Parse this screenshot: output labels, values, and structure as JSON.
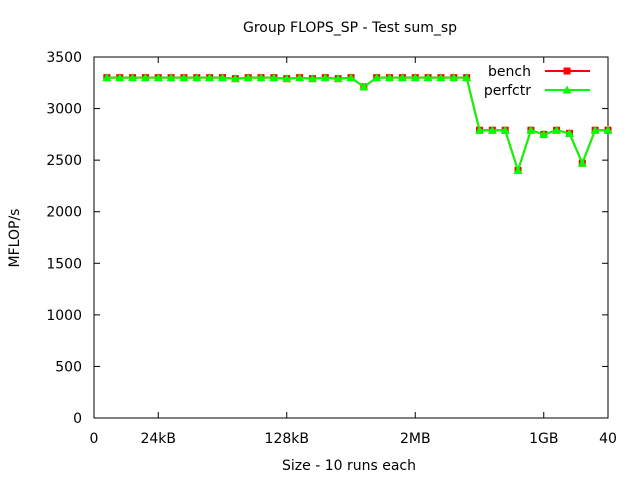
{
  "chart_data": {
    "type": "line",
    "title": "Group FLOPS_SP - Test sum_sp",
    "xlabel": "Size - 10 runs each",
    "ylabel": "MFLOP/s",
    "xlim": [
      0,
      40
    ],
    "ylim": [
      0,
      3500
    ],
    "grid": false,
    "legend_position": "top-right",
    "x_ticks": [
      {
        "value": 0,
        "label": "0"
      },
      {
        "value": 5,
        "label": "24kB"
      },
      {
        "value": 15,
        "label": "128kB"
      },
      {
        "value": 25,
        "label": "2MB"
      },
      {
        "value": 35,
        "label": "1GB"
      },
      {
        "value": 40,
        "label": "40"
      }
    ],
    "y_ticks": [
      0,
      500,
      1000,
      1500,
      2000,
      2500,
      3000,
      3500
    ],
    "x": [
      1,
      2,
      3,
      4,
      5,
      6,
      7,
      8,
      9,
      10,
      11,
      12,
      13,
      14,
      15,
      16,
      17,
      18,
      19,
      20,
      21,
      22,
      23,
      24,
      25,
      26,
      27,
      28,
      29,
      30,
      31,
      32,
      33,
      34,
      35,
      36,
      37,
      38,
      39,
      40
    ],
    "series": [
      {
        "name": "bench",
        "color": "#ff0000",
        "marker": "square",
        "values": [
          3300,
          3300,
          3300,
          3300,
          3300,
          3300,
          3300,
          3300,
          3300,
          3300,
          3290,
          3300,
          3300,
          3300,
          3290,
          3300,
          3290,
          3300,
          3290,
          3300,
          3210,
          3300,
          3300,
          3300,
          3300,
          3300,
          3300,
          3300,
          3300,
          2790,
          2790,
          2790,
          2400,
          2790,
          2750,
          2790,
          2760,
          2470,
          2790,
          2790
        ]
      },
      {
        "name": "perfctr",
        "color": "#00ff00",
        "marker": "triangle",
        "values": [
          3300,
          3300,
          3300,
          3300,
          3300,
          3300,
          3300,
          3300,
          3300,
          3300,
          3290,
          3300,
          3300,
          3300,
          3290,
          3300,
          3290,
          3300,
          3290,
          3300,
          3210,
          3300,
          3300,
          3300,
          3300,
          3300,
          3300,
          3300,
          3300,
          2790,
          2790,
          2790,
          2400,
          2790,
          2750,
          2790,
          2760,
          2470,
          2790,
          2790
        ]
      }
    ]
  }
}
